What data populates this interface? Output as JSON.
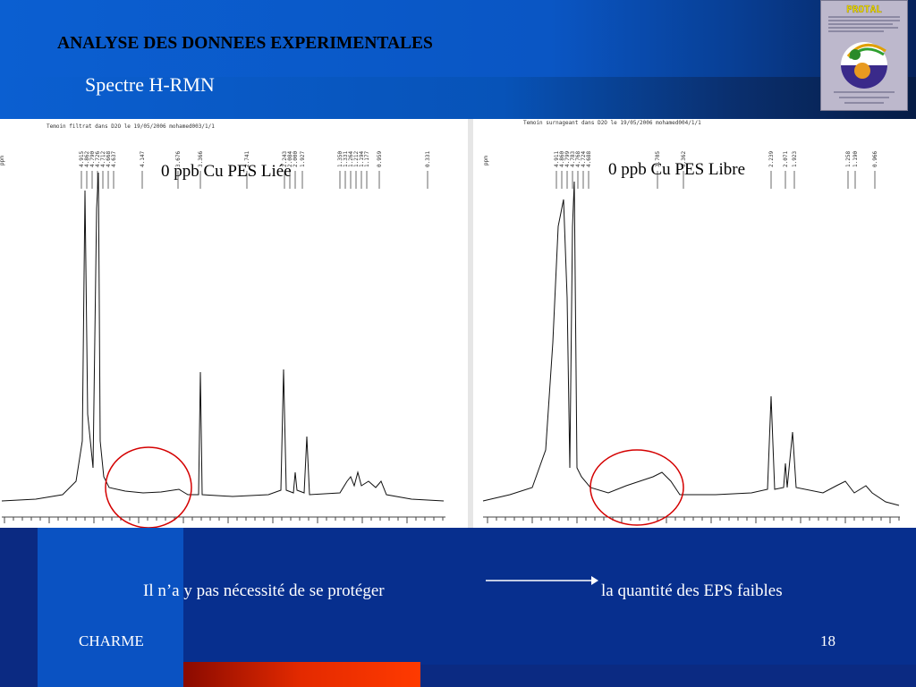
{
  "slide": {
    "title": "ANALYSE DES DONNEES EXPERIMENTALES",
    "subtitle": "Spectre H-RMN",
    "slide_number": "18",
    "footer_author": "CHARME"
  },
  "spectra": {
    "left": {
      "label": "0 ppb Cu  PES Liée",
      "header": "Temoin filtrat dans D2O  le 19/05/2006  mohamed003/1/1",
      "peaks": [
        "4.915",
        "4.862",
        "4.790",
        "4.726",
        "4.712",
        "4.668",
        "4.637",
        "4.147",
        "3.676",
        "3.366",
        "2.741",
        "2.243",
        "2.084",
        "2.000",
        "1.927",
        "1.350",
        "1.331",
        "1.264",
        "1.212",
        "1.194",
        "1.177",
        "0.959",
        "0.331"
      ]
    },
    "right": {
      "label": "0 ppb Cu  PES Libre",
      "header": "Temoin surnageant dans D2O  le 19/05/2006  mohamed004/1/1",
      "peaks": [
        "4.911",
        "4.860",
        "4.799",
        "4.783",
        "4.768",
        "4.724",
        "4.688",
        "3.705",
        "3.362",
        "2.239",
        "2.071",
        "1.923",
        "1.258",
        "1.190",
        "0.966"
      ]
    },
    "axis_unit": "ppm"
  },
  "conclusion": {
    "left_text": "Il n’a y pas nécessité de se protéger",
    "right_text": "la quantité des EPS faibles"
  },
  "colors": {
    "circle": "#d40000",
    "header_blue": "#0b5fd1",
    "footer_blue": "#0b2a82"
  }
}
